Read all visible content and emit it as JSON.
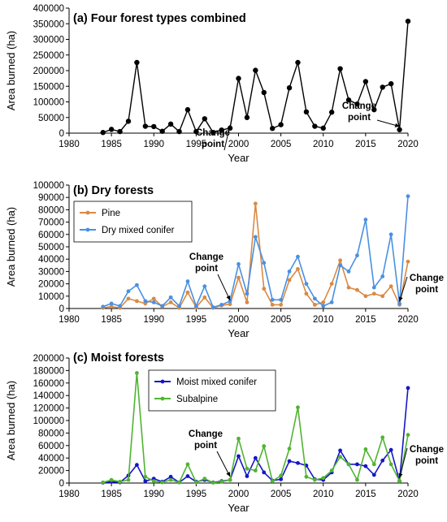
{
  "chart_data": [
    {
      "type": "line",
      "title": "(a) Four forest types combined",
      "xlabel": "Year",
      "ylabel": "Area burned (ha)",
      "xlim": [
        1980,
        2020
      ],
      "ylim": [
        0,
        400000
      ],
      "xticks": [
        "1980",
        "1985",
        "1990",
        "1995",
        "2000",
        "2005",
        "2010",
        "2015",
        "2020"
      ],
      "yticks": [
        "0",
        "50000",
        "100000",
        "150000",
        "200000",
        "250000",
        "300000",
        "350000",
        "400000"
      ],
      "x": [
        1984,
        1985,
        1986,
        1987,
        1988,
        1989,
        1990,
        1991,
        1992,
        1993,
        1994,
        1995,
        1996,
        1997,
        1998,
        1999,
        2000,
        2001,
        2002,
        2003,
        2004,
        2005,
        2006,
        2007,
        2008,
        2009,
        2010,
        2011,
        2012,
        2013,
        2014,
        2015,
        2016,
        2017,
        2018,
        2019,
        2020
      ],
      "series": [
        {
          "color": "#000000",
          "values": [
            2000,
            12000,
            5000,
            38000,
            226000,
            22000,
            21000,
            6000,
            29000,
            5000,
            75000,
            5000,
            46000,
            2000,
            10000,
            16000,
            175000,
            50000,
            201000,
            130000,
            15000,
            27000,
            145000,
            226000,
            68000,
            22000,
            16000,
            67000,
            206000,
            106000,
            93000,
            165000,
            75000,
            147000,
            158000,
            11000,
            358000
          ]
        }
      ],
      "legend": "none",
      "annotations": [
        {
          "text": [
            "Change",
            "point"
          ],
          "arrow_to": [
            1999,
            16000
          ]
        },
        {
          "text": [
            "Change",
            "point"
          ],
          "arrow_to": [
            2019,
            11000
          ]
        }
      ]
    },
    {
      "type": "line",
      "title": "(b) Dry forests",
      "xlabel": "Year",
      "ylabel": "Area burned (ha)",
      "xlim": [
        1980,
        2020
      ],
      "ylim": [
        0,
        100000
      ],
      "xticks": [
        "1980",
        "1985",
        "1990",
        "1995",
        "2000",
        "2005",
        "2010",
        "2015",
        "2020"
      ],
      "yticks": [
        "0",
        "10000",
        "20000",
        "30000",
        "40000",
        "50000",
        "60000",
        "70000",
        "80000",
        "90000",
        "100000"
      ],
      "x": [
        1984,
        1985,
        1986,
        1987,
        1988,
        1989,
        1990,
        1991,
        1992,
        1993,
        1994,
        1995,
        1996,
        1997,
        1998,
        1999,
        2000,
        2001,
        2002,
        2003,
        2004,
        2005,
        2006,
        2007,
        2008,
        2009,
        2010,
        2011,
        2012,
        2013,
        2014,
        2015,
        2016,
        2017,
        2018,
        2019,
        2020
      ],
      "series": [
        {
          "name": "Pine",
          "color": "#d98a43",
          "values": [
            500,
            1500,
            500,
            8000,
            6000,
            4000,
            8000,
            1500,
            5000,
            500,
            13000,
            1000,
            9000,
            500,
            2500,
            3500,
            25000,
            5000,
            85000,
            16000,
            3000,
            3000,
            23000,
            32000,
            12000,
            3000,
            5000,
            20000,
            39000,
            17000,
            15000,
            10000,
            12000,
            10000,
            18000,
            3000,
            38000
          ]
        },
        {
          "name": "Dry mixed conifer",
          "color": "#4a90e2",
          "values": [
            1500,
            4000,
            2000,
            14000,
            19000,
            6000,
            5000,
            2000,
            9000,
            2000,
            22000,
            2000,
            18000,
            1000,
            3000,
            6000,
            36000,
            12000,
            58000,
            37000,
            7000,
            7000,
            30000,
            42000,
            20000,
            8000,
            2000,
            5000,
            35000,
            30000,
            43000,
            72000,
            17000,
            26000,
            60000,
            4000,
            91000
          ]
        }
      ],
      "legend": "top-left",
      "annotations": [
        {
          "text": [
            "Change",
            "point"
          ],
          "arrow_to": [
            1999,
            4000
          ]
        },
        {
          "text": [
            "Change",
            "point"
          ],
          "arrow_to": [
            2019,
            3000
          ]
        }
      ]
    },
    {
      "type": "line",
      "title": "(c) Moist forests",
      "xlabel": "Year",
      "ylabel": "Area burned (ha)",
      "xlim": [
        1980,
        2020
      ],
      "ylim": [
        0,
        200000
      ],
      "xticks": [
        "1980",
        "1985",
        "1990",
        "1995",
        "2000",
        "2005",
        "2010",
        "2015",
        "2020"
      ],
      "yticks": [
        "0",
        "20000",
        "40000",
        "60000",
        "80000",
        "100000",
        "120000",
        "140000",
        "160000",
        "180000",
        "200000"
      ],
      "x": [
        1984,
        1985,
        1986,
        1987,
        1988,
        1989,
        1990,
        1991,
        1992,
        1993,
        1994,
        1995,
        1996,
        1997,
        1998,
        1999,
        2000,
        2001,
        2002,
        2003,
        2004,
        2005,
        2006,
        2007,
        2008,
        2009,
        2010,
        2011,
        2012,
        2013,
        2014,
        2015,
        2016,
        2017,
        2018,
        2019,
        2020
      ],
      "series": [
        {
          "name": "Moist mixed conifer",
          "color": "#1515c8",
          "values": [
            500,
            2000,
            1000,
            12000,
            29000,
            3000,
            7000,
            2000,
            10000,
            1000,
            11000,
            2000,
            5000,
            1000,
            3000,
            5000,
            43000,
            11000,
            40000,
            17000,
            4000,
            6000,
            35000,
            32000,
            28000,
            6000,
            5000,
            17000,
            52000,
            30000,
            30000,
            27000,
            13000,
            36000,
            53000,
            3000,
            152000
          ]
        },
        {
          "name": "Subalpine",
          "color": "#50b432",
          "values": [
            1000,
            5000,
            2000,
            5000,
            176000,
            10000,
            3000,
            1000,
            5000,
            1000,
            30000,
            1000,
            7000,
            500,
            2000,
            5000,
            71000,
            23000,
            20000,
            59000,
            3000,
            12000,
            55000,
            121000,
            10000,
            5000,
            8000,
            20000,
            42000,
            30000,
            5000,
            54000,
            30000,
            73000,
            30000,
            3000,
            77000
          ]
        }
      ],
      "legend": "top-center",
      "annotations": [
        {
          "text": [
            "Change",
            "point"
          ],
          "arrow_to": [
            1999,
            5000
          ]
        },
        {
          "text": [
            "Change",
            "point"
          ],
          "arrow_to": [
            2019,
            3000
          ]
        }
      ]
    }
  ]
}
